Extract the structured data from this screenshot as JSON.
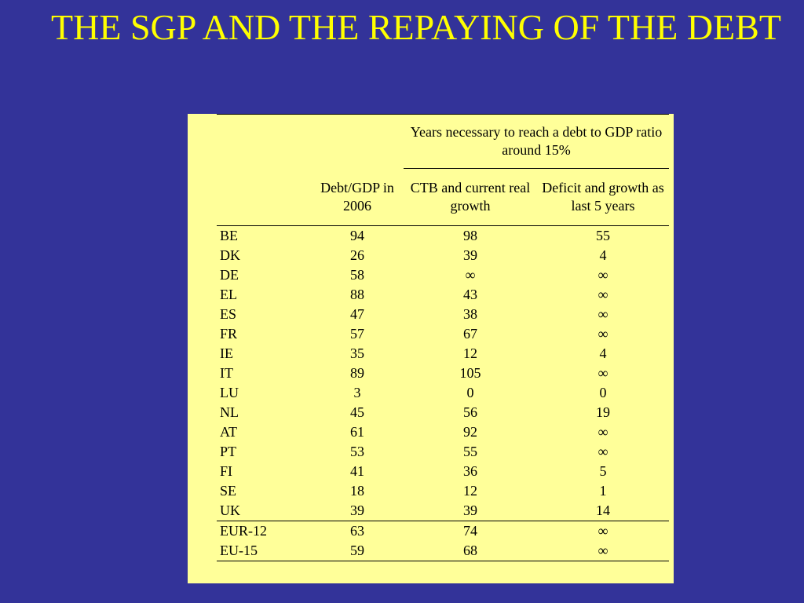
{
  "slide": {
    "title": "THE SGP AND THE REPAYING OF THE DEBT"
  },
  "table": {
    "super_header": "Years necessary to reach a debt to GDP ratio around 15%",
    "col_debt": "Debt/GDP in 2006",
    "col_ctb": "CTB and current real growth",
    "col_deficit": "Deficit and growth as last 5 years",
    "rows": [
      {
        "country": "BE",
        "debt": "94",
        "ctb": "98",
        "deficit": "55"
      },
      {
        "country": "DK",
        "debt": "26",
        "ctb": "39",
        "deficit": "4"
      },
      {
        "country": "DE",
        "debt": "58",
        "ctb": "∞",
        "deficit": "∞"
      },
      {
        "country": "EL",
        "debt": "88",
        "ctb": "43",
        "deficit": "∞"
      },
      {
        "country": "ES",
        "debt": "47",
        "ctb": "38",
        "deficit": "∞"
      },
      {
        "country": "FR",
        "debt": "57",
        "ctb": "67",
        "deficit": "∞"
      },
      {
        "country": "IE",
        "debt": "35",
        "ctb": "12",
        "deficit": "4"
      },
      {
        "country": "IT",
        "debt": "89",
        "ctb": "105",
        "deficit": "∞"
      },
      {
        "country": "LU",
        "debt": "3",
        "ctb": "0",
        "deficit": "0"
      },
      {
        "country": "NL",
        "debt": "45",
        "ctb": "56",
        "deficit": "19"
      },
      {
        "country": "AT",
        "debt": "61",
        "ctb": "92",
        "deficit": "∞"
      },
      {
        "country": "PT",
        "debt": "53",
        "ctb": "55",
        "deficit": "∞"
      },
      {
        "country": "FI",
        "debt": "41",
        "ctb": "36",
        "deficit": "5"
      },
      {
        "country": "SE",
        "debt": "18",
        "ctb": "12",
        "deficit": "1"
      },
      {
        "country": "UK",
        "debt": "39",
        "ctb": "39",
        "deficit": "14"
      }
    ],
    "aggregates": [
      {
        "country": "EUR-12",
        "debt": "63",
        "ctb": "74",
        "deficit": "∞"
      },
      {
        "country": "EU-15",
        "debt": "59",
        "ctb": "68",
        "deficit": "∞"
      }
    ]
  }
}
